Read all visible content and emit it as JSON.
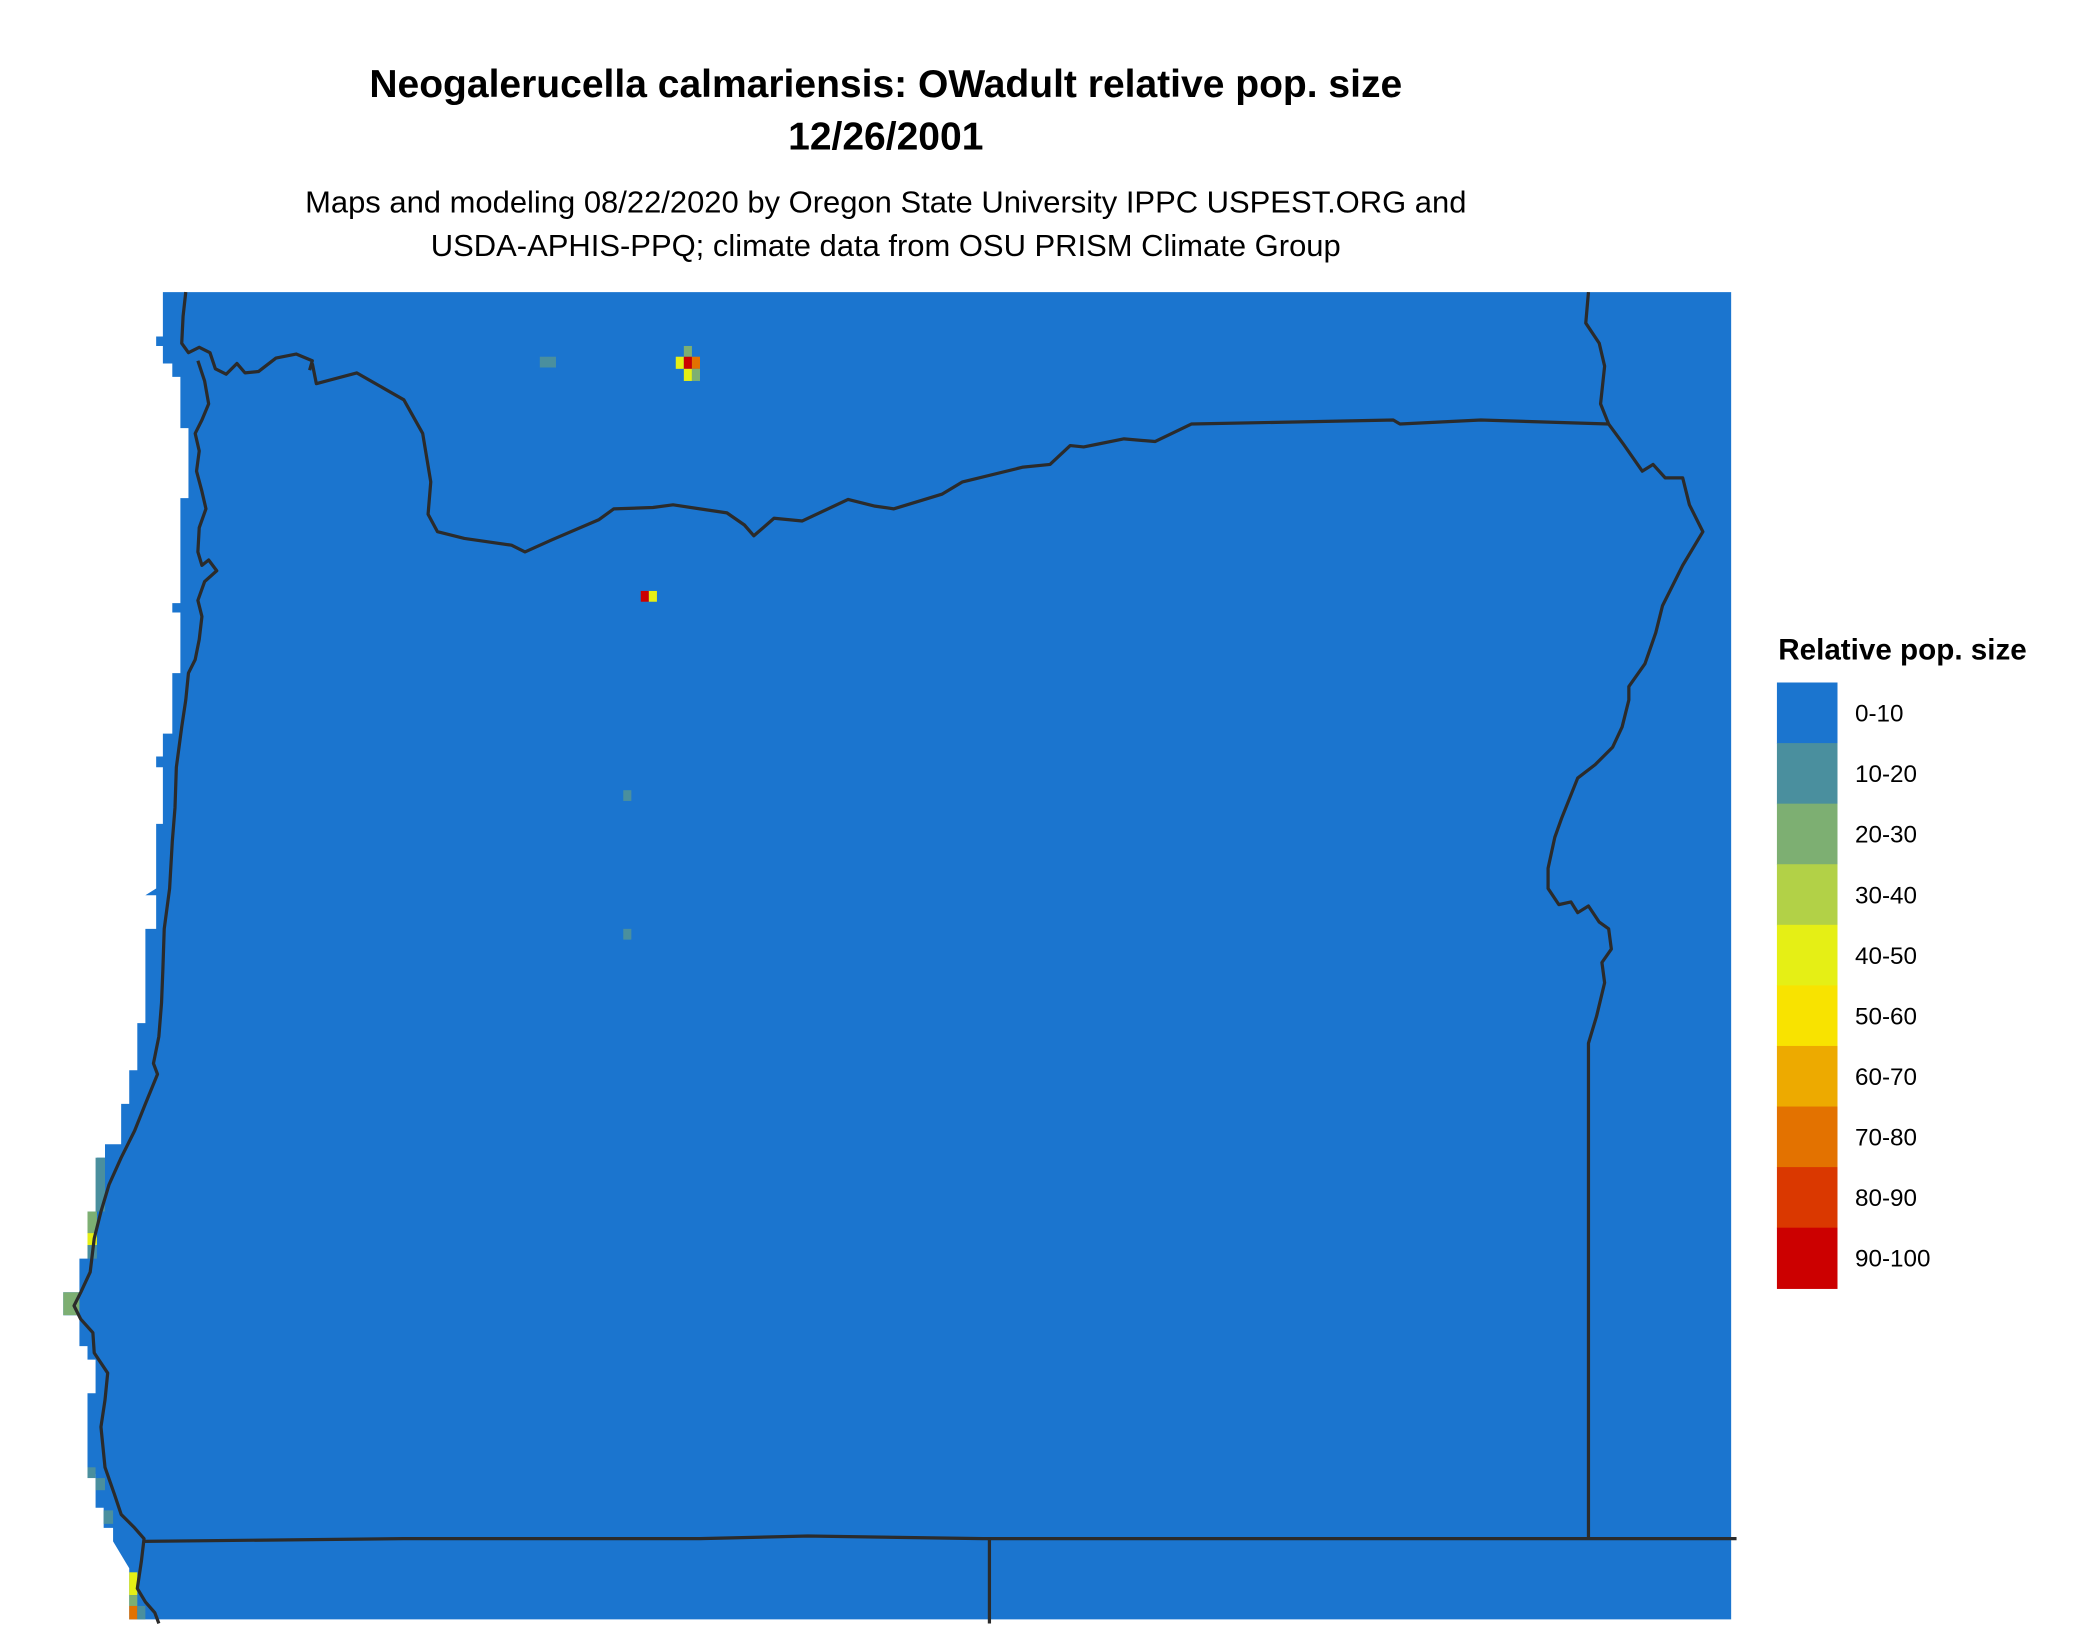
{
  "header": {
    "title": "Neogalerucella calmariensis: OWadult relative pop. size",
    "date": "12/26/2001",
    "subtitle_line1": "Maps and modeling 08/22/2020 by Oregon State University IPPC USPEST.ORG and",
    "subtitle_line2": "USDA-APHIS-PPQ; climate data from OSU PRISM Climate Group"
  },
  "legend": {
    "title": "Relative pop. size",
    "items": [
      {
        "label": "0-10",
        "color": "#1b75cf"
      },
      {
        "label": "10-20",
        "color": "#4a8f9e"
      },
      {
        "label": "20-30",
        "color": "#7daf72"
      },
      {
        "label": "30-40",
        "color": "#b2d147"
      },
      {
        "label": "40-50",
        "color": "#e5ef15"
      },
      {
        "label": "50-60",
        "color": "#f8e300"
      },
      {
        "label": "60-70",
        "color": "#edaa00"
      },
      {
        "label": "70-80",
        "color": "#e37200"
      },
      {
        "label": "80-90",
        "color": "#da3800"
      },
      {
        "label": "90-100",
        "color": "#cc0000"
      }
    ]
  },
  "map": {
    "background_class": "0-10",
    "border_color": "#2b2b2b"
  }
}
